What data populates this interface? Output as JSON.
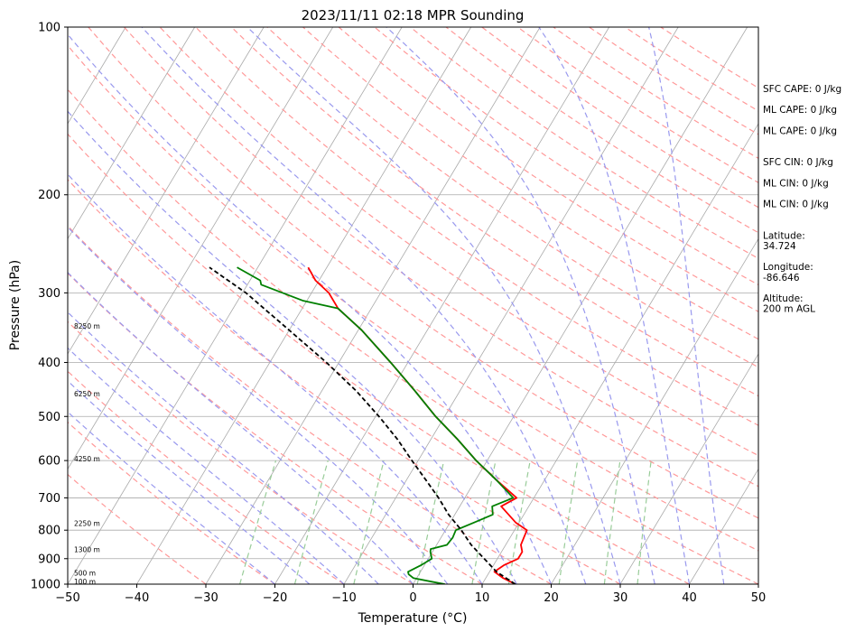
{
  "chart_data": {
    "type": "line",
    "title": "2023/11/11 02:18 MPR Sounding",
    "xlabel": "Temperature (°C)",
    "ylabel": "Pressure (hPa)",
    "xlim": [
      -50,
      50
    ],
    "ylim": [
      1000,
      100
    ],
    "y_scale": "log",
    "x_ticks": [
      "−50",
      "−40",
      "−30",
      "−20",
      "−10",
      "0",
      "10",
      "20",
      "30",
      "40",
      "50"
    ],
    "y_ticks": [
      {
        "p": 100,
        "label": "100"
      },
      {
        "p": 200,
        "label": "200"
      },
      {
        "p": 300,
        "label": "300"
      },
      {
        "p": 400,
        "label": "400"
      },
      {
        "p": 500,
        "label": "500"
      },
      {
        "p": 600,
        "label": "600"
      },
      {
        "p": 700,
        "label": "700"
      },
      {
        "p": 800,
        "label": "800"
      },
      {
        "p": 900,
        "label": "900"
      },
      {
        "p": 1000,
        "label": "1000"
      }
    ],
    "grid": true,
    "skew": "skew-T log-P",
    "series": [
      {
        "key": "temperature",
        "color": "#ff0000",
        "points": [
          [
            14.8,
            1000
          ],
          [
            12.5,
            975
          ],
          [
            10.7,
            950
          ],
          [
            11.5,
            925
          ],
          [
            13.0,
            900
          ],
          [
            13.0,
            875
          ],
          [
            12.2,
            850
          ],
          [
            12.0,
            825
          ],
          [
            11.8,
            800
          ],
          [
            9.5,
            775
          ],
          [
            6.0,
            725
          ],
          [
            7.5,
            700
          ],
          [
            3.0,
            650
          ],
          [
            -1.6,
            600
          ],
          [
            -6.1,
            550
          ],
          [
            -11.3,
            500
          ],
          [
            -16.5,
            450
          ],
          [
            -22.5,
            400
          ],
          [
            -29.5,
            350
          ],
          [
            -34.8,
            320
          ],
          [
            -37.5,
            300
          ],
          [
            -40.5,
            285
          ],
          [
            -42.7,
            270
          ]
        ]
      },
      {
        "key": "dewpoint",
        "color": "#008000",
        "points": [
          [
            4.6,
            1000
          ],
          [
            2.5,
            990
          ],
          [
            -0.5,
            975
          ],
          [
            -1.5,
            960
          ],
          [
            -1.8,
            950
          ],
          [
            -0.5,
            925
          ],
          [
            0.5,
            900
          ],
          [
            -0.3,
            875
          ],
          [
            -0.5,
            865
          ],
          [
            1.5,
            850
          ],
          [
            1.7,
            825
          ],
          [
            1.5,
            800
          ],
          [
            3.5,
            775
          ],
          [
            5.5,
            750
          ],
          [
            4.7,
            725
          ],
          [
            7.0,
            700
          ],
          [
            3.0,
            650
          ],
          [
            -1.6,
            600
          ],
          [
            -6.1,
            550
          ],
          [
            -11.3,
            500
          ],
          [
            -16.5,
            450
          ],
          [
            -22.5,
            400
          ],
          [
            -29.5,
            350
          ],
          [
            -34.8,
            320
          ],
          [
            -40.5,
            310
          ],
          [
            -48.0,
            290
          ],
          [
            -48.5,
            285
          ],
          [
            -53.0,
            270
          ]
        ]
      },
      {
        "key": "parcel",
        "color": "#000000",
        "dashed": true,
        "points": [
          [
            14.8,
            1000
          ],
          [
            11.0,
            950
          ],
          [
            5.0,
            850
          ],
          [
            2.3,
            800
          ],
          [
            -0.9,
            750
          ],
          [
            -3.8,
            700
          ],
          [
            -7.2,
            650
          ],
          [
            -10.9,
            600
          ],
          [
            -14.8,
            550
          ],
          [
            -19.5,
            500
          ],
          [
            -25.0,
            450
          ],
          [
            -31.8,
            400
          ],
          [
            -40.0,
            350
          ],
          [
            -49.5,
            300
          ],
          [
            -57.0,
            270
          ]
        ]
      }
    ],
    "height_labels": [
      {
        "label": "100 m",
        "p": 988
      },
      {
        "label": "500 m",
        "p": 955
      },
      {
        "label": "1300 m",
        "p": 866
      },
      {
        "label": "2250 m",
        "p": 778
      },
      {
        "label": "4250 m",
        "p": 595
      },
      {
        "label": "6250 m",
        "p": 455
      },
      {
        "label": "8250 m",
        "p": 344
      }
    ],
    "annotations": [
      {
        "text": "SFC CAPE: 0 J/kg",
        "row": 0
      },
      {
        "text": "ML CAPE: 0 J/kg",
        "row": 1
      },
      {
        "text": "ML CAPE: 0 J/kg",
        "row": 2
      },
      {
        "text": "SFC CIN: 0 J/kg",
        "row": 3.5
      },
      {
        "text": "ML CIN: 0 J/kg",
        "row": 4.5
      },
      {
        "text": "ML CIN: 0 J/kg",
        "row": 5.5
      },
      {
        "text": "Latitude:",
        "row": 7
      },
      {
        "text": "34.724",
        "row": 7.5
      },
      {
        "text": "Longitude:",
        "row": 8.5
      },
      {
        "text": "-86.646",
        "row": 9
      },
      {
        "text": "Altitude:",
        "row": 10
      },
      {
        "text": "200 m AGL",
        "row": 10.5
      }
    ],
    "colors": {
      "dry_adiabat": "#ff9999",
      "moist_adiabat": "#9999ee",
      "mixing_ratio": "#99cc99",
      "isotherm": "#aaaaaa",
      "isobar": "#aaaaaa"
    }
  }
}
